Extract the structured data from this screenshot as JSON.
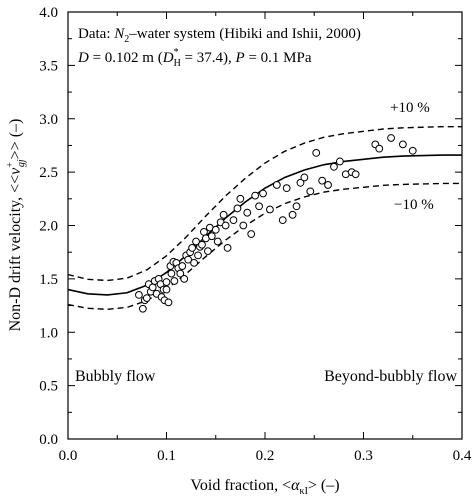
{
  "chart_data": {
    "type": "scatter",
    "xlabel": {
      "prefix": "Void fraction, <",
      "symbol": "α",
      "sub": "κI",
      "suffix": "> (–)"
    },
    "ylabel": {
      "prefix": "Non-D drift velocity, <<",
      "symbol": "v",
      "sup": "+",
      "sub": "gj",
      "suffix": ">> (–)"
    },
    "xlim": [
      0.0,
      0.4
    ],
    "ylim": [
      0.0,
      4.0
    ],
    "x_ticks": [
      "0.0",
      "0.1",
      "0.2",
      "0.3",
      "0.4"
    ],
    "y_ticks": [
      "0.0",
      "0.5",
      "1.0",
      "1.5",
      "2.0",
      "2.5",
      "3.0",
      "3.5",
      "4.0"
    ],
    "grid": false,
    "annotation_line1": {
      "a": "Data: ",
      "b": "N",
      "c": "2",
      "d": "–water system (Hibiki and Ishii, 2000)"
    },
    "annotation_line2": {
      "a": "D",
      "b": " = 0.102 m (",
      "c": "D",
      "d": "*",
      "e": "H",
      "f": " = 37.4), ",
      "g": "P",
      "h": " = 0.1 MPa"
    },
    "labels": {
      "upper_band": "+10 %",
      "lower_band": "−10 %",
      "left_region": "Bubbly flow",
      "right_region": "Beyond-bubbly flow"
    },
    "correlation": {
      "style": "solid",
      "x": [
        0.0,
        0.02,
        0.04,
        0.06,
        0.08,
        0.1,
        0.12,
        0.14,
        0.16,
        0.18,
        0.2,
        0.22,
        0.24,
        0.26,
        0.28,
        0.3,
        0.32,
        0.34,
        0.36,
        0.38,
        0.4
      ],
      "y": [
        1.4,
        1.36,
        1.35,
        1.37,
        1.44,
        1.56,
        1.72,
        1.9,
        2.07,
        2.22,
        2.35,
        2.45,
        2.52,
        2.57,
        2.6,
        2.62,
        2.64,
        2.65,
        2.655,
        2.66,
        2.66
      ]
    },
    "band_factor": 0.1,
    "points": [
      [
        0.072,
        1.35
      ],
      [
        0.076,
        1.22
      ],
      [
        0.078,
        1.3
      ],
      [
        0.08,
        1.32
      ],
      [
        0.082,
        1.45
      ],
      [
        0.084,
        1.38
      ],
      [
        0.086,
        1.42
      ],
      [
        0.088,
        1.48
      ],
      [
        0.09,
        1.36
      ],
      [
        0.092,
        1.5
      ],
      [
        0.094,
        1.45
      ],
      [
        0.095,
        1.33
      ],
      [
        0.097,
        1.4
      ],
      [
        0.098,
        1.3
      ],
      [
        0.1,
        1.47
      ],
      [
        0.1,
        1.4
      ],
      [
        0.102,
        1.28
      ],
      [
        0.104,
        1.62
      ],
      [
        0.105,
        1.55
      ],
      [
        0.107,
        1.66
      ],
      [
        0.108,
        1.48
      ],
      [
        0.11,
        1.65
      ],
      [
        0.112,
        1.6
      ],
      [
        0.114,
        1.55
      ],
      [
        0.116,
        1.62
      ],
      [
        0.118,
        1.5
      ],
      [
        0.12,
        1.72
      ],
      [
        0.122,
        1.68
      ],
      [
        0.124,
        1.75
      ],
      [
        0.126,
        1.79
      ],
      [
        0.128,
        1.65
      ],
      [
        0.13,
        1.85
      ],
      [
        0.132,
        1.72
      ],
      [
        0.134,
        1.8
      ],
      [
        0.136,
        1.82
      ],
      [
        0.138,
        1.94
      ],
      [
        0.14,
        1.88
      ],
      [
        0.142,
        1.76
      ],
      [
        0.144,
        1.98
      ],
      [
        0.146,
        1.9
      ],
      [
        0.15,
        1.96
      ],
      [
        0.152,
        1.85
      ],
      [
        0.155,
        2.03
      ],
      [
        0.158,
        2.1
      ],
      [
        0.16,
        2.0
      ],
      [
        0.162,
        1.79
      ],
      [
        0.168,
        2.05
      ],
      [
        0.172,
        2.16
      ],
      [
        0.175,
        2.25
      ],
      [
        0.178,
        2.0
      ],
      [
        0.182,
        2.12
      ],
      [
        0.186,
        1.92
      ],
      [
        0.19,
        2.28
      ],
      [
        0.194,
        2.18
      ],
      [
        0.198,
        2.3
      ],
      [
        0.205,
        2.15
      ],
      [
        0.212,
        2.38
      ],
      [
        0.218,
        2.05
      ],
      [
        0.222,
        2.35
      ],
      [
        0.228,
        2.1
      ],
      [
        0.232,
        2.18
      ],
      [
        0.236,
        2.4
      ],
      [
        0.24,
        2.45
      ],
      [
        0.246,
        2.32
      ],
      [
        0.252,
        2.68
      ],
      [
        0.258,
        2.42
      ],
      [
        0.264,
        2.38
      ],
      [
        0.27,
        2.55
      ],
      [
        0.276,
        2.6
      ],
      [
        0.282,
        2.48
      ],
      [
        0.288,
        2.5
      ],
      [
        0.292,
        2.48
      ],
      [
        0.312,
        2.76
      ],
      [
        0.316,
        2.72
      ],
      [
        0.328,
        2.82
      ],
      [
        0.34,
        2.76
      ],
      [
        0.35,
        2.7
      ]
    ]
  }
}
